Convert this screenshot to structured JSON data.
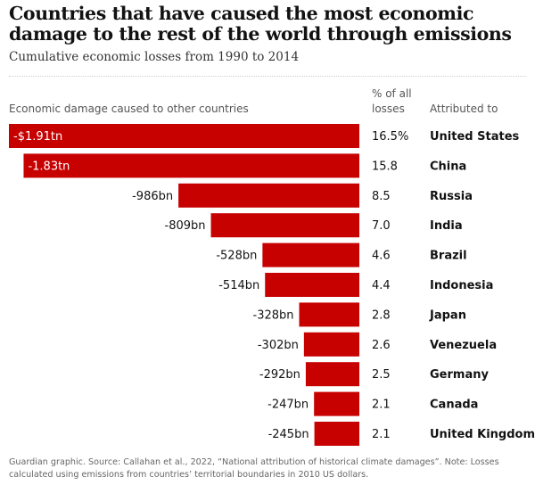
{
  "title": "Countries that have caused the most economic damage to the rest of the world through emissions",
  "subtitle": "Cumulative economic losses from 1990 to 2014",
  "headers": {
    "damage": "Economic damage caused to other countries",
    "percent": "% of all losses",
    "country": "Attributed to"
  },
  "source": "Guardian graphic. Source: Callahan et al., 2022, “National attribution of historical climate damages”. Note: Losses calculated using emissions from countries’ territorial boundaries in 2010 US dollars.",
  "colors": {
    "bar": "#c70000",
    "bar_label_inside": "#ffffff",
    "bar_label_outside": "#121212"
  },
  "chart_data": {
    "type": "bar",
    "orientation": "horizontal",
    "unit": "US$ billions",
    "categories": [
      "United States",
      "China",
      "Russia",
      "India",
      "Brazil",
      "Indonesia",
      "Japan",
      "Venezuela",
      "Germany",
      "Canada",
      "United Kingdom"
    ],
    "values": [
      -1910,
      -1830,
      -986,
      -809,
      -528,
      -514,
      -328,
      -302,
      -292,
      -247,
      -245
    ],
    "value_labels": [
      "-$1.91tn",
      "-1.83tn",
      "-986bn",
      "-809bn",
      "-528bn",
      "-514bn",
      "-328bn",
      "-302bn",
      "-292bn",
      "-247bn",
      "-245bn"
    ],
    "percent_labels": [
      "16.5%",
      "15.8",
      "8.5",
      "7.0",
      "4.6",
      "4.4",
      "2.8",
      "2.6",
      "2.5",
      "2.1",
      "2.1"
    ]
  }
}
